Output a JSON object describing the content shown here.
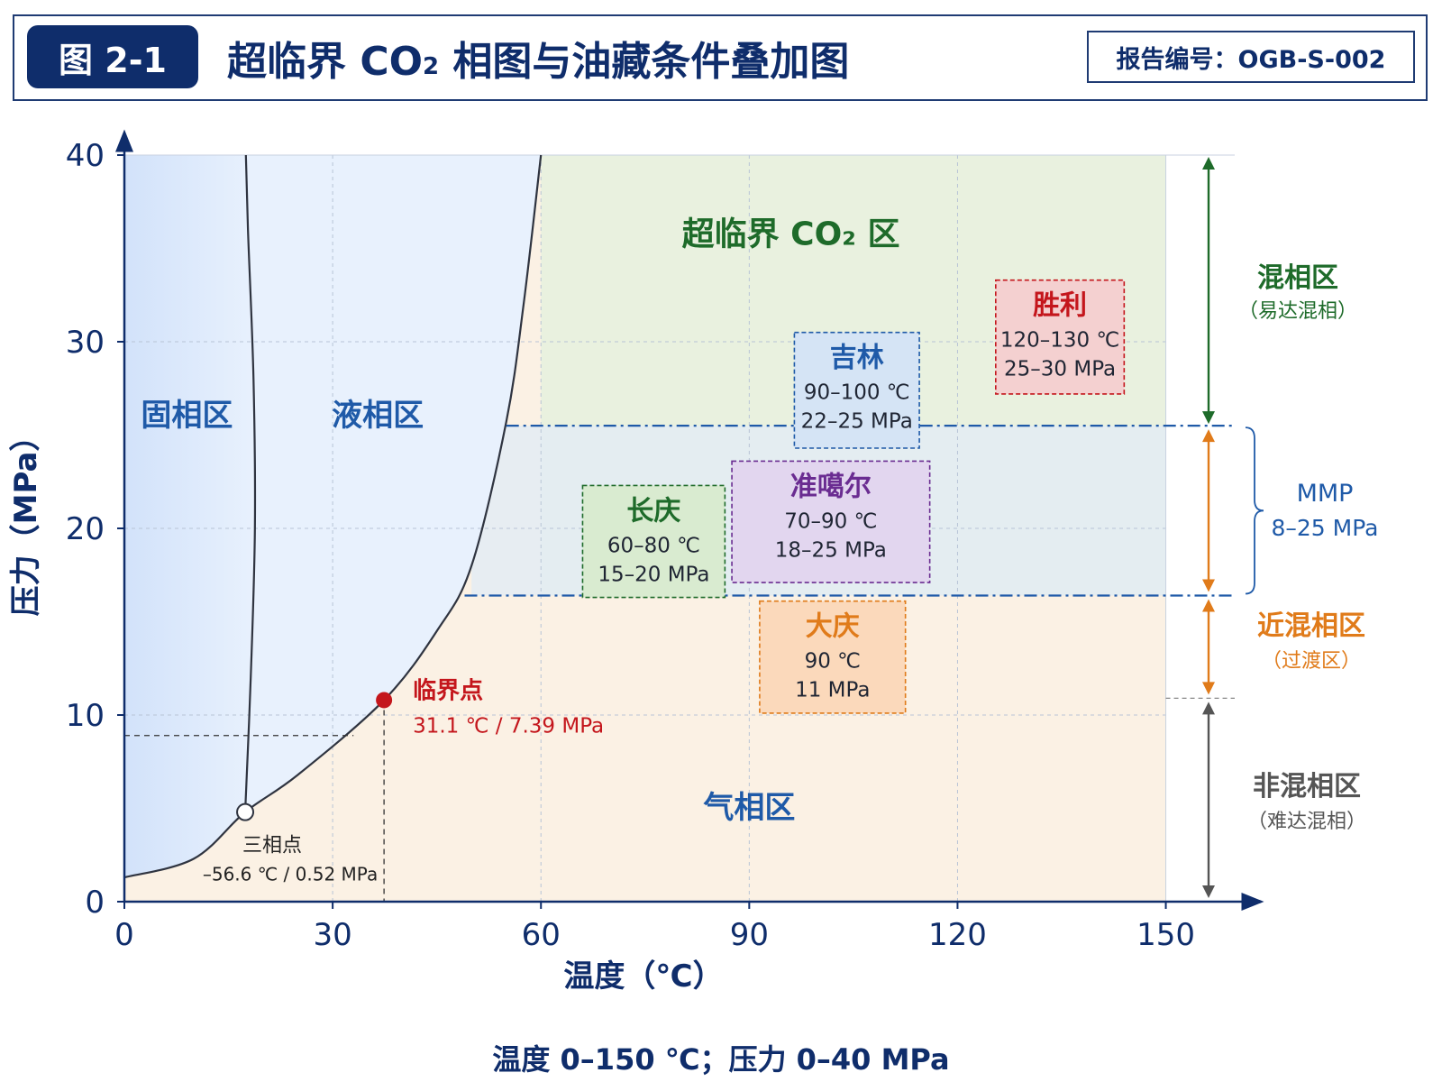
{
  "header": {
    "figure_label": "图 2-1",
    "title_prefix": "超临界 CO",
    "title_sub": "2",
    "title_suffix": " 相图与油藏条件叠加图",
    "report_number": "报告编号：OGB-S-002"
  },
  "footer": {
    "note": "温度 0–150 ℃；压力 0–40 MPa"
  },
  "chart_data": {
    "type": "line",
    "xlabel": "温度（℃）",
    "ylabel": "压力（MPa）",
    "xlim": [
      0,
      162
    ],
    "ylim": [
      0,
      40
    ],
    "x_ticks": [
      0,
      30,
      60,
      90,
      120,
      150
    ],
    "x_tick_labels": [
      "0",
      "30",
      "60",
      "90",
      "120",
      "150"
    ],
    "y_ticks": [
      0,
      10,
      20,
      30,
      40
    ],
    "y_tick_labels": [
      "0",
      "10",
      "20",
      "30",
      "40"
    ],
    "grid": true,
    "colors": {
      "solid": "#dbe8fb",
      "liquid": "#e8f1fd",
      "supercritical": "#e9f1df",
      "gas": "#fbf1e4",
      "mmp_band": "#e3ecf5",
      "mmp_line": "#1f5aa8",
      "critical_point": "#c4161c",
      "axis": "#0f2d6b"
    },
    "phase_lines": {
      "sublimation_vaporization": [
        [
          0,
          1.3
        ],
        [
          10,
          2.3
        ],
        [
          17.4,
          4.8
        ],
        [
          25,
          6.8
        ],
        [
          37.4,
          10.8
        ],
        [
          45,
          14.5
        ],
        [
          50,
          18
        ],
        [
          55,
          25.7
        ],
        [
          57.5,
          32
        ],
        [
          60,
          40
        ]
      ],
      "melting": [
        [
          17.4,
          4.8
        ],
        [
          18.2,
          12
        ],
        [
          18.8,
          20
        ],
        [
          18.6,
          28
        ],
        [
          17.8,
          36
        ],
        [
          17.5,
          40
        ]
      ]
    },
    "regions": [
      {
        "name": "固相区",
        "x": 9,
        "y": 25.5,
        "color": "#1f5aa8"
      },
      {
        "name": "液相区",
        "x": 36.5,
        "y": 25.5,
        "color": "#1f5aa8"
      },
      {
        "name": "超临界 CO₂ 区",
        "x": 96,
        "y": 35.2,
        "color": "#1e6b2a"
      },
      {
        "name": "气相区",
        "x": 90,
        "y": 4.5,
        "color": "#1f5aa8"
      }
    ],
    "triple_point": {
      "label": "三相点",
      "value_label": "–56.6 ℃ / 0.52 MPa",
      "x": 17.4,
      "y": 4.8
    },
    "critical_point": {
      "label": "临界点",
      "value_label": "31.1 ℃ / 7.39 MPa",
      "x": 37.4,
      "y": 10.8
    },
    "reference_lines": {
      "critical_guide_y": 8.9,
      "upper_mmp": 25.5,
      "lower_mmp": 16.4,
      "miscible_floor": 10.9
    },
    "reservoirs": [
      {
        "name": "胜利",
        "temp": "120–130 ℃",
        "pressure": "25–30 MPa",
        "x0": 125.5,
        "x1": 144,
        "y0": 27.2,
        "y1": 33.3,
        "color": "#c4161c",
        "fill": "#f4d0d0"
      },
      {
        "name": "吉林",
        "temp": "90–100 ℃",
        "pressure": "22–25 MPa",
        "x0": 96.5,
        "x1": 114.5,
        "y0": 24.3,
        "y1": 30.5,
        "color": "#1f5aa8",
        "fill": "#d5e4f5"
      },
      {
        "name": "长庆",
        "temp": "60–80 ℃",
        "pressure": "15–20 MPa",
        "x0": 66,
        "x1": 86.5,
        "y0": 16.3,
        "y1": 22.3,
        "color": "#1e6b2a",
        "fill": "#d9ebd0"
      },
      {
        "name": "准噶尔",
        "temp": "70–90 ℃",
        "pressure": "18–25 MPa",
        "x0": 87.5,
        "x1": 116,
        "y0": 17.1,
        "y1": 23.6,
        "color": "#6a2c91",
        "fill": "#e2d6ef"
      },
      {
        "name": "大庆",
        "temp": "90 ℃",
        "pressure": "11 MPa",
        "x0": 91.5,
        "x1": 112.5,
        "y0": 10.1,
        "y1": 16.1,
        "color": "#e07b1a",
        "fill": "#fbd9bb"
      }
    ],
    "zones": [
      {
        "name": "混相区",
        "sub": "（易达混相）",
        "color": "#1e6b2a"
      },
      {
        "name": "MMP",
        "sub": "8–25 MPa",
        "color": "#1f5aa8"
      },
      {
        "name": "近混相区",
        "sub": "（过渡区）",
        "color": "#e07b1a"
      },
      {
        "name": "非混相区",
        "sub": "（难达混相）",
        "color": "#555555"
      }
    ]
  }
}
